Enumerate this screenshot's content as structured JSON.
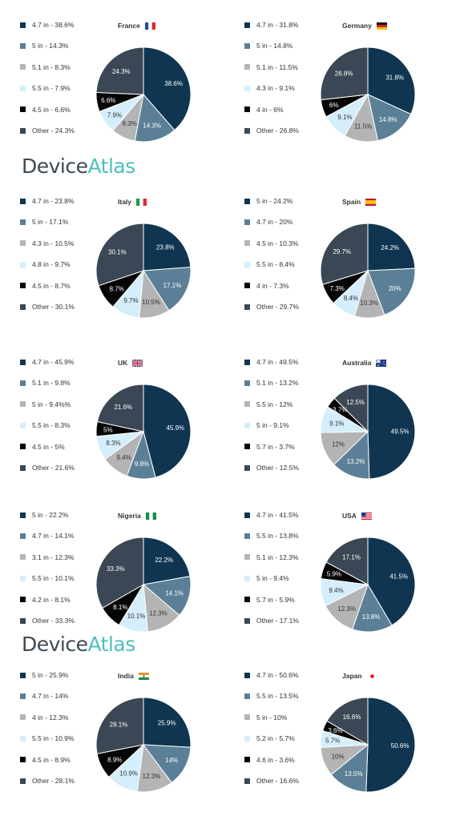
{
  "brand": {
    "part1": "Device",
    "part2": "Atlas"
  },
  "colors": {
    "c1": "#0f3551",
    "c2": "#5b7f96",
    "c3": "#b4b4b4",
    "c4": "#d4eefb",
    "c5": "#050505",
    "c6": "#3b4754"
  },
  "chart_data": [
    {
      "type": "pie",
      "title": "France",
      "flag": "france-flag",
      "slices": [
        {
          "label": "4.7 in - 38.6%",
          "value": 38.6,
          "text": "38.6%",
          "color": "c1"
        },
        {
          "label": "5 in - 14.3%",
          "value": 14.3,
          "text": "14.3%",
          "color": "c2"
        },
        {
          "label": "5.1 in - 8.3%",
          "value": 8.3,
          "text": "8.3%",
          "color": "c3"
        },
        {
          "label": "5.5 in - 7.9%",
          "value": 7.9,
          "text": "7.9%",
          "color": "c4"
        },
        {
          "label": "4.5 in - 6.6%",
          "value": 6.6,
          "text": "6.6%",
          "color": "c5"
        },
        {
          "label": "Other - 24.3%",
          "value": 24.3,
          "text": "24.3%",
          "color": "c6"
        }
      ]
    },
    {
      "type": "pie",
      "title": "Germany",
      "flag": "germany-flag",
      "slices": [
        {
          "label": "4.7 in - 31.8%",
          "value": 31.8,
          "text": "31.8%",
          "color": "c1"
        },
        {
          "label": "5 in - 14.8%",
          "value": 14.8,
          "text": "14.8%",
          "color": "c2"
        },
        {
          "label": "5.1 in - 11.5%",
          "value": 11.5,
          "text": "11.5%",
          "color": "c3"
        },
        {
          "label": "4.3 in - 9.1%",
          "value": 9.1,
          "text": "9.1%",
          "color": "c4"
        },
        {
          "label": "4 in - 6%",
          "value": 6,
          "text": "6%",
          "color": "c5"
        },
        {
          "label": "Other - 26.8%",
          "value": 26.8,
          "text": "26.8%",
          "color": "c6"
        }
      ]
    },
    {
      "type": "pie",
      "title": "Italy",
      "flag": "italy-flag",
      "slices": [
        {
          "label": "4.7 in - 23.8%",
          "value": 23.8,
          "text": "23.8%",
          "color": "c1"
        },
        {
          "label": "5 in - 17.1%",
          "value": 17.1,
          "text": "17.1%",
          "color": "c2"
        },
        {
          "label": "4.3 in - 10.5%",
          "value": 10.5,
          "text": "10.5%",
          "color": "c3"
        },
        {
          "label": "4.8 in - 9.7%",
          "value": 9.7,
          "text": "9.7%",
          "color": "c4"
        },
        {
          "label": "4.5 in - 8.7%",
          "value": 8.7,
          "text": "8.7%",
          "color": "c5"
        },
        {
          "label": "Other - 30.1%",
          "value": 30.1,
          "text": "30.1%",
          "color": "c6"
        }
      ]
    },
    {
      "type": "pie",
      "title": "Spain",
      "flag": "spain-flag",
      "slices": [
        {
          "label": "5 in - 24.2%",
          "value": 24.2,
          "text": "24.2%",
          "color": "c1"
        },
        {
          "label": "4.7 in - 20%",
          "value": 20,
          "text": "20%",
          "color": "c2"
        },
        {
          "label": "4.5 in - 10.3%",
          "value": 10.3,
          "text": "10.3%",
          "color": "c3"
        },
        {
          "label": "5.5 in - 8.4%",
          "value": 8.4,
          "text": "8.4%",
          "color": "c4"
        },
        {
          "label": "4 in - 7.3%",
          "value": 7.3,
          "text": "7.3%",
          "color": "c5"
        },
        {
          "label": "Other - 29.7%",
          "value": 29.7,
          "text": "29.7%",
          "color": "c6"
        }
      ]
    },
    {
      "type": "pie",
      "title": "UK",
      "flag": "uk-flag",
      "slices": [
        {
          "label": "4.7 in - 45.9%",
          "value": 45.9,
          "text": "45.9%",
          "color": "c1"
        },
        {
          "label": "5.1 in - 9.8%",
          "value": 9.8,
          "text": "9.8%",
          "color": "c2"
        },
        {
          "label": "5 in - 9.4%%",
          "value": 9.4,
          "text": "9.4%",
          "color": "c3"
        },
        {
          "label": "5.5 in - 8.3%",
          "value": 8.3,
          "text": "8.3%",
          "color": "c4"
        },
        {
          "label": "4.5 in - 5%",
          "value": 5,
          "text": "5%",
          "color": "c5"
        },
        {
          "label": "Other - 21.6%",
          "value": 21.6,
          "text": "21.6%",
          "color": "c6"
        }
      ]
    },
    {
      "type": "pie",
      "title": "Australia",
      "flag": "australia-flag",
      "slices": [
        {
          "label": "4.7 in - 49.5%",
          "value": 49.5,
          "text": "49.5%",
          "color": "c1"
        },
        {
          "label": "5.1 in - 13.2%",
          "value": 13.2,
          "text": "13.2%",
          "color": "c2"
        },
        {
          "label": "5.5 in - 12%",
          "value": 12,
          "text": "12%",
          "color": "c3"
        },
        {
          "label": "5 in - 9.1%",
          "value": 9.1,
          "text": "9.1%",
          "color": "c4"
        },
        {
          "label": "5.7 in - 3.7%",
          "value": 3.7,
          "text": "3.7%",
          "color": "c5"
        },
        {
          "label": "Other - 12.5%",
          "value": 12.5,
          "text": "12.5%",
          "color": "c6"
        }
      ]
    },
    {
      "type": "pie",
      "title": "Nigeria",
      "flag": "nigeria-flag",
      "slices": [
        {
          "label": "5 in - 22.2%",
          "value": 22.2,
          "text": "22.2%",
          "color": "c1"
        },
        {
          "label": "4.7 in - 14.1%",
          "value": 14.1,
          "text": "14.1%",
          "color": "c2"
        },
        {
          "label": "3.1 in - 12.3%",
          "value": 12.3,
          "text": "12.3%",
          "color": "c3"
        },
        {
          "label": "5.5 in - 10.1%",
          "value": 10.1,
          "text": "10.1%",
          "color": "c4"
        },
        {
          "label": "4.2 in - 8.1%",
          "value": 8.1,
          "text": "8.1%",
          "color": "c5"
        },
        {
          "label": "Other - 33.3%",
          "value": 33.3,
          "text": "33.3%",
          "color": "c6"
        }
      ]
    },
    {
      "type": "pie",
      "title": "USA",
      "flag": "usa-flag",
      "slices": [
        {
          "label": "4.7 in - 41.5%",
          "value": 41.5,
          "text": "41.5%",
          "color": "c1"
        },
        {
          "label": "5.5 in - 13.8%",
          "value": 13.8,
          "text": "13.8%",
          "color": "c2"
        },
        {
          "label": "5.1 in - 12.3%",
          "value": 12.3,
          "text": "12.3%",
          "color": "c3"
        },
        {
          "label": "5 in - 9.4%",
          "value": 9.4,
          "text": "9.4%",
          "color": "c4"
        },
        {
          "label": "5.7 in - 5.9%",
          "value": 5.9,
          "text": "5.9%",
          "color": "c5"
        },
        {
          "label": "Other - 17.1%",
          "value": 17.1,
          "text": "17.1%",
          "color": "c6"
        }
      ]
    },
    {
      "type": "pie",
      "title": "India",
      "flag": "india-flag",
      "slices": [
        {
          "label": "5 in - 25.9%",
          "value": 25.9,
          "text": "25.9%",
          "color": "c1"
        },
        {
          "label": "4.7 in - 14%",
          "value": 14,
          "text": "14%",
          "color": "c2"
        },
        {
          "label": "4 in - 12.3%",
          "value": 12.3,
          "text": "12.3%",
          "color": "c3"
        },
        {
          "label": "5.5 in - 10.9%",
          "value": 10.9,
          "text": "10.9%",
          "color": "c4"
        },
        {
          "label": "4.5 in - 8.9%",
          "value": 8.9,
          "text": "8.9%",
          "color": "c5"
        },
        {
          "label": "Other - 28.1%",
          "value": 28.1,
          "text": "28.1%",
          "color": "c6"
        }
      ]
    },
    {
      "type": "pie",
      "title": "Japan",
      "flag": "japan-flag",
      "slices": [
        {
          "label": "4.7 in - 50.6%",
          "value": 50.6,
          "text": "50.6%",
          "color": "c1"
        },
        {
          "label": "5.5 in - 13.5%",
          "value": 13.5,
          "text": "13.5%",
          "color": "c2"
        },
        {
          "label": "5 in - 10%",
          "value": 10,
          "text": "10%",
          "color": "c3"
        },
        {
          "label": "5.2 in - 5.7%",
          "value": 5.7,
          "text": "5.7%",
          "color": "c4"
        },
        {
          "label": "4.6 in - 3.6%",
          "value": 3.6,
          "text": "3.6%",
          "color": "c5"
        },
        {
          "label": "Other - 16.6%",
          "value": 16.6,
          "text": "16.6%",
          "color": "c6"
        }
      ]
    }
  ]
}
